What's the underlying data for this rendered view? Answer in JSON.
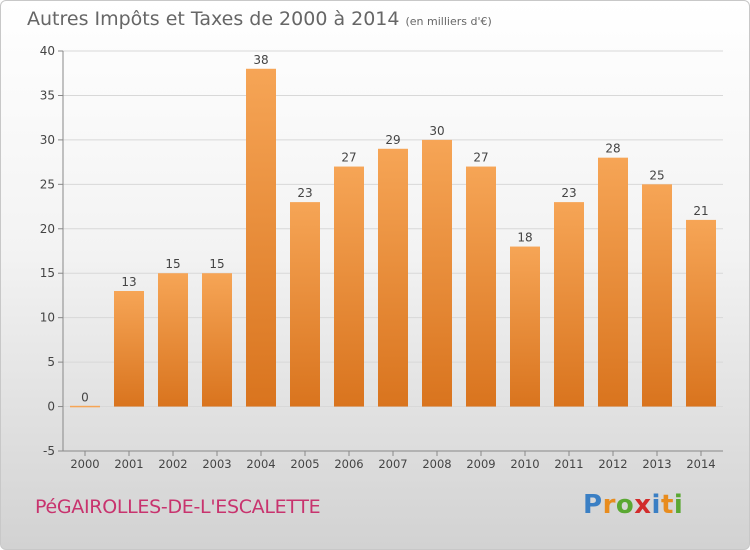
{
  "title": "Autres Impôts et Taxes de 2000 à 2014",
  "subtitle": "(en milliers d'€)",
  "commune": "PéGAIROLLES-DE-L'ESCALETTE",
  "logo": {
    "letters": [
      "P",
      "r",
      "o",
      "x",
      "i",
      "t",
      "i"
    ],
    "colors": [
      "#3a7fc4",
      "#e88c1e",
      "#5aa832",
      "#d22c2c",
      "#3a7fc4",
      "#e88c1e",
      "#5aa832"
    ]
  },
  "colors": {
    "bar_light": "#f6a556",
    "bar_dark": "#d9741e",
    "axis": "#888888",
    "grid": "#d8d8d8"
  },
  "chart_data": {
    "type": "bar",
    "categories": [
      "2000",
      "2001",
      "2002",
      "2003",
      "2004",
      "2005",
      "2006",
      "2007",
      "2008",
      "2009",
      "2010",
      "2011",
      "2012",
      "2013",
      "2014"
    ],
    "values": [
      0,
      13,
      15,
      15,
      38,
      23,
      27,
      29,
      30,
      27,
      18,
      23,
      28,
      25,
      21
    ],
    "data_labels": [
      "0",
      "13",
      "15",
      "15",
      "38",
      "23",
      "27",
      "29",
      "30",
      "27",
      "18",
      "23",
      "28",
      "25",
      "21"
    ],
    "ylim": [
      -5,
      40
    ],
    "yticks": [
      -5,
      0,
      5,
      10,
      15,
      20,
      25,
      30,
      35,
      40
    ],
    "ytick_labels": [
      "-5",
      "0",
      "5",
      "10",
      "15",
      "20",
      "25",
      "30",
      "35",
      "40"
    ],
    "grid": true,
    "xlabel": "",
    "ylabel": ""
  }
}
